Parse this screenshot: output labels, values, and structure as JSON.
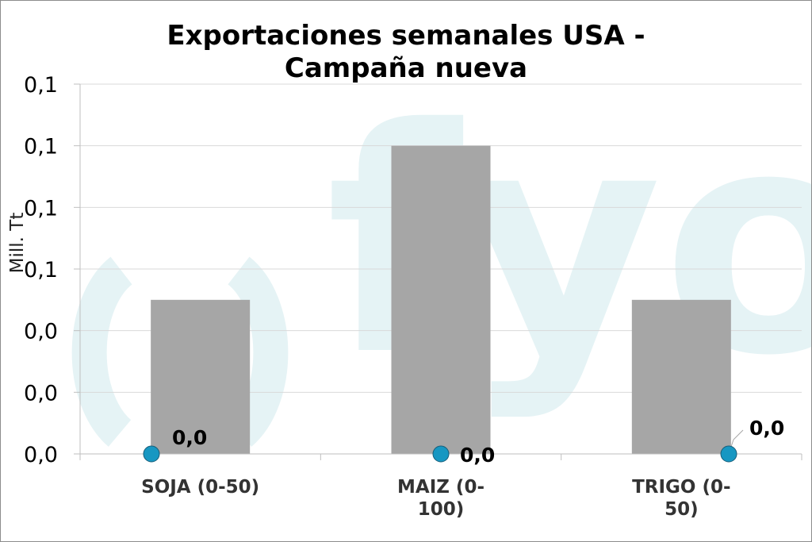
{
  "chart_data": {
    "type": "bar",
    "title_lines": [
      "Exportaciones semanales USA -",
      "Campaña nueva"
    ],
    "ylabel": "Mill. Tt",
    "xlabel": "",
    "categories": [
      [
        "SOJA (0-50)"
      ],
      [
        "MAIZ (0-",
        "100)"
      ],
      [
        "TRIGO (0-",
        "50)"
      ]
    ],
    "series": [
      {
        "type": "bar",
        "values": [
          0.05,
          0.1,
          0.05
        ],
        "color": "#a6a6a6"
      },
      {
        "type": "scatter",
        "values": [
          0.0,
          0.0,
          0.0
        ],
        "color": "#1797c2",
        "data_labels": [
          "0,0",
          "0,0",
          "0,0"
        ]
      }
    ],
    "ytick_labels": [
      "0,0",
      "0,0",
      "0,0",
      "0,1",
      "0,1",
      "0,1",
      "0,1"
    ],
    "ylim": [
      0,
      0.12
    ],
    "grid": true,
    "watermark": "fyo"
  }
}
